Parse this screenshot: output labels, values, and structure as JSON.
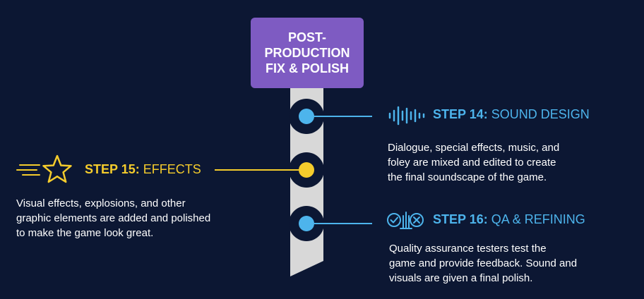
{
  "banner": {
    "line1": "POST-",
    "line2": "PRODUCTION",
    "line3": "FIX & POLISH"
  },
  "steps": [
    {
      "label": "STEP 14:",
      "title": " SOUND DESIGN",
      "color": "#4db4ec",
      "icon": "sound-wave-icon",
      "description": [
        "Dialogue, special effects, music, and",
        "foley are mixed and edited to create",
        "the final soundscape of the game."
      ]
    },
    {
      "label": "STEP 15:",
      "title": " EFFECTS",
      "color": "#f5cc2c",
      "icon": "star-icon",
      "description": [
        "Visual effects, explosions, and other",
        "graphic elements are added and polished",
        "to make the game look great."
      ]
    },
    {
      "label": "STEP 16:",
      "title": " QA & REFINING",
      "color": "#4db4ec",
      "icon": "check-and-cross-icon",
      "description": [
        "Quality assurance testers test the",
        "game and provide feedback. Sound and",
        "visuals are given a final polish."
      ]
    }
  ],
  "colors": {
    "background": "#0c1733",
    "banner": "#7e5bc2",
    "strip": "#d8d8d8",
    "accent_blue": "#4db4ec",
    "accent_yellow": "#f5cc2c"
  }
}
